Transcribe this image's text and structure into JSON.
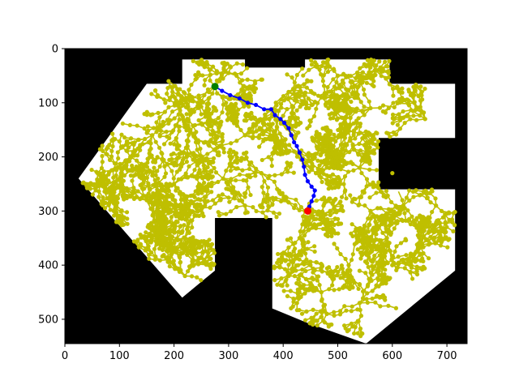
{
  "chart_data": {
    "type": "scatter",
    "title": "",
    "xlabel": "",
    "ylabel": "",
    "xlim": [
      0,
      737
    ],
    "ylim": [
      545,
      0
    ],
    "x_ticks": [
      0,
      100,
      200,
      300,
      400,
      500,
      600,
      700
    ],
    "y_ticks": [
      0,
      100,
      200,
      300,
      400,
      500
    ],
    "grid": false,
    "legend": "none",
    "map": {
      "background_color": "#000000",
      "free_color": "#ffffff",
      "free_region": [
        [
          215,
          20
        ],
        [
          330,
          20
        ],
        [
          330,
          35
        ],
        [
          440,
          35
        ],
        [
          440,
          20
        ],
        [
          595,
          20
        ],
        [
          595,
          65
        ],
        [
          715,
          65
        ],
        [
          715,
          165
        ],
        [
          575,
          165
        ],
        [
          575,
          260
        ],
        [
          715,
          260
        ],
        [
          715,
          410
        ],
        [
          552,
          545
        ],
        [
          440,
          505
        ],
        [
          380,
          480
        ],
        [
          380,
          313
        ],
        [
          275,
          313
        ],
        [
          275,
          410
        ],
        [
          215,
          460
        ],
        [
          25,
          240
        ],
        [
          150,
          65
        ],
        [
          215,
          65
        ]
      ]
    },
    "tree": {
      "color": "#bfbf00",
      "hubs": [
        [
          275,
          70
        ],
        [
          260,
          25
        ],
        [
          300,
          45
        ],
        [
          210,
          110
        ],
        [
          160,
          160
        ],
        [
          120,
          200
        ],
        [
          90,
          250
        ],
        [
          150,
          280
        ],
        [
          200,
          250
        ],
        [
          230,
          300
        ],
        [
          170,
          330
        ],
        [
          220,
          350
        ],
        [
          190,
          390
        ],
        [
          220,
          420
        ],
        [
          250,
          200
        ],
        [
          330,
          160
        ],
        [
          290,
          240
        ],
        [
          360,
          230
        ],
        [
          330,
          290
        ],
        [
          440,
          300
        ],
        [
          430,
          350
        ],
        [
          450,
          400
        ],
        [
          410,
          420
        ],
        [
          410,
          80
        ],
        [
          470,
          90
        ],
        [
          500,
          50
        ],
        [
          540,
          60
        ],
        [
          570,
          40
        ],
        [
          560,
          110
        ],
        [
          640,
          100
        ],
        [
          660,
          130
        ],
        [
          520,
          150
        ],
        [
          500,
          200
        ],
        [
          540,
          220
        ],
        [
          600,
          230
        ],
        [
          620,
          290
        ],
        [
          650,
          330
        ],
        [
          560,
          300
        ],
        [
          590,
          350
        ],
        [
          540,
          340
        ],
        [
          520,
          400
        ],
        [
          470,
          450
        ],
        [
          480,
          490
        ],
        [
          540,
          470
        ],
        [
          600,
          400
        ],
        [
          640,
          380
        ],
        [
          680,
          290
        ],
        [
          460,
          230
        ],
        [
          420,
          190
        ],
        [
          390,
          130
        ],
        [
          230,
          150
        ],
        [
          190,
          60
        ],
        [
          100,
          220
        ],
        [
          60,
          230
        ]
      ]
    },
    "path": {
      "color": "#0000ff",
      "points": [
        [
          275,
          70
        ],
        [
          288,
          78
        ],
        [
          303,
          86
        ],
        [
          320,
          92
        ],
        [
          335,
          100
        ],
        [
          350,
          104
        ],
        [
          365,
          112
        ],
        [
          378,
          112
        ],
        [
          385,
          123
        ],
        [
          395,
          130
        ],
        [
          402,
          137
        ],
        [
          410,
          147
        ],
        [
          415,
          160
        ],
        [
          420,
          173
        ],
        [
          425,
          180
        ],
        [
          430,
          192
        ],
        [
          435,
          205
        ],
        [
          438,
          218
        ],
        [
          440,
          233
        ],
        [
          445,
          245
        ],
        [
          452,
          255
        ],
        [
          458,
          262
        ],
        [
          456,
          272
        ],
        [
          452,
          282
        ],
        [
          448,
          292
        ],
        [
          445,
          300
        ]
      ]
    },
    "start": {
      "x": 275,
      "y": 70,
      "color": "#008000"
    },
    "goal": {
      "x": 445,
      "y": 300,
      "color": "#ff0000"
    }
  }
}
